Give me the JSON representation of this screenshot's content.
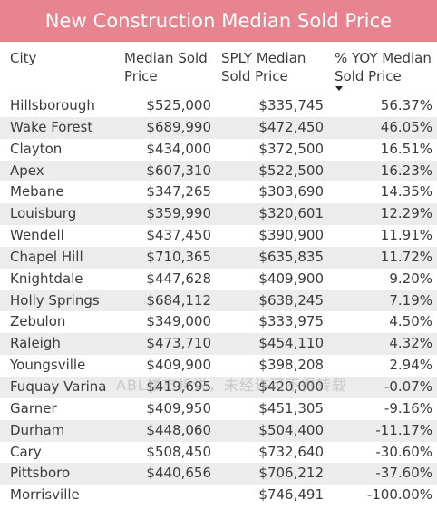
{
  "title": "New Construction Median Sold Price",
  "columns": {
    "city": "City",
    "median": "Median Sold\nPrice",
    "sply": "SPLY Median\nSold Price",
    "yoy": "% YOY Median\nSold Price"
  },
  "rows": [
    {
      "city": "Hillsborough",
      "median": "$525,000",
      "sply": "$335,745",
      "yoy": "56.37%"
    },
    {
      "city": "Wake Forest",
      "median": "$689,990",
      "sply": "$472,450",
      "yoy": "46.05%"
    },
    {
      "city": "Clayton",
      "median": "$434,000",
      "sply": "$372,500",
      "yoy": "16.51%"
    },
    {
      "city": "Apex",
      "median": "$607,310",
      "sply": "$522,500",
      "yoy": "16.23%"
    },
    {
      "city": "Mebane",
      "median": "$347,265",
      "sply": "$303,690",
      "yoy": "14.35%"
    },
    {
      "city": "Louisburg",
      "median": "$359,990",
      "sply": "$320,601",
      "yoy": "12.29%"
    },
    {
      "city": "Wendell",
      "median": "$437,450",
      "sply": "$390,900",
      "yoy": "11.91%"
    },
    {
      "city": "Chapel Hill",
      "median": "$710,365",
      "sply": "$635,835",
      "yoy": "11.72%"
    },
    {
      "city": "Knightdale",
      "median": "$447,628",
      "sply": "$409,900",
      "yoy": "9.20%"
    },
    {
      "city": "Holly Springs",
      "median": "$684,112",
      "sply": "$638,245",
      "yoy": "7.19%"
    },
    {
      "city": "Zebulon",
      "median": "$349,000",
      "sply": "$333,975",
      "yoy": "4.50%"
    },
    {
      "city": "Raleigh",
      "median": "$473,710",
      "sply": "$454,110",
      "yoy": "4.32%"
    },
    {
      "city": "Youngsville",
      "median": "$409,900",
      "sply": "$398,208",
      "yoy": "2.94%"
    },
    {
      "city": "Fuquay Varina",
      "median": "$419,695",
      "sply": "$420,000",
      "yoy": "-0.07%"
    },
    {
      "city": "Garner",
      "median": "$409,950",
      "sply": "$451,305",
      "yoy": "-9.16%"
    },
    {
      "city": "Durham",
      "median": "$448,060",
      "sply": "$504,400",
      "yoy": "-11.17%"
    },
    {
      "city": "Cary",
      "median": "$508,450",
      "sply": "$732,640",
      "yoy": "-30.60%"
    },
    {
      "city": "Pittsboro",
      "median": "$440,656",
      "sply": "$706,212",
      "yoy": "-37.60%"
    },
    {
      "city": "Morrisville",
      "median": "",
      "sply": "$746,491",
      "yoy": "-100.00%"
    }
  ],
  "watermark": "ABL楼市析说，未经许可不得转载",
  "colors": {
    "title_bg": "#e8848f",
    "alt_row_bg": "#ececec",
    "text": "#3b3b3b"
  },
  "icons": {
    "sort": "sort-descending-icon"
  }
}
